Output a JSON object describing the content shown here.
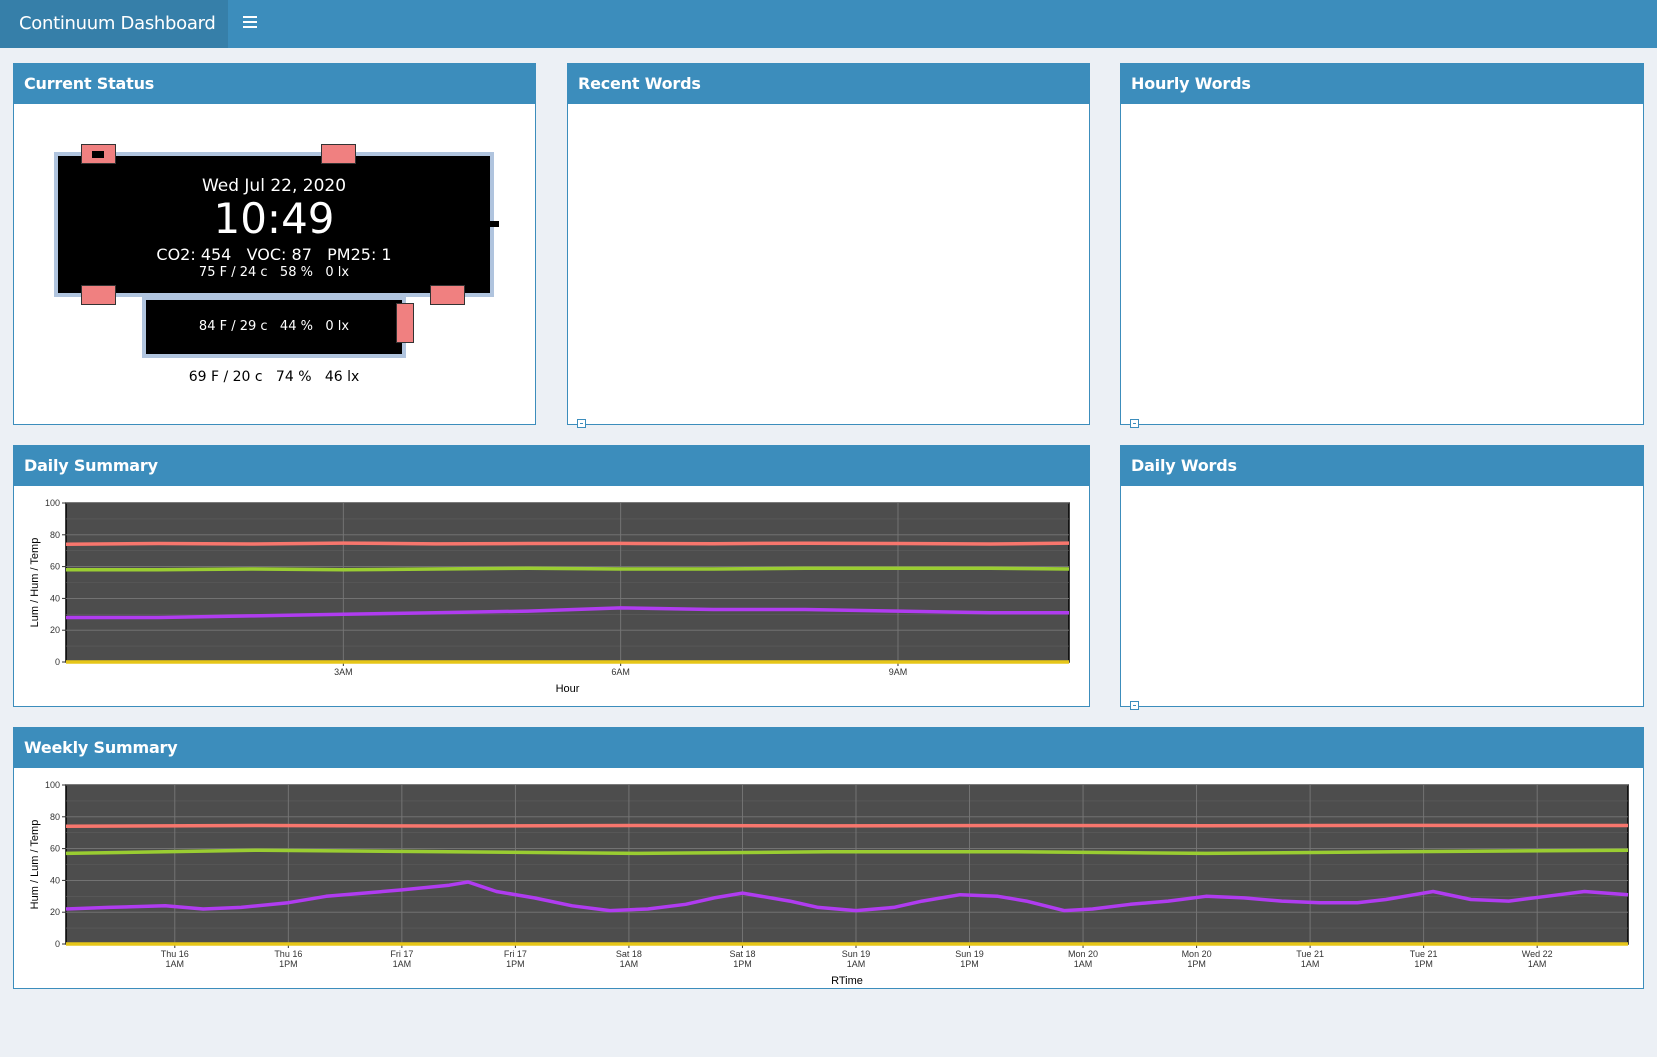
{
  "app": {
    "title": "Continuum Dashboard"
  },
  "boxes": {
    "current_status": "Current Status",
    "recent_words": "Recent Words",
    "hourly_words": "Hourly Words",
    "daily_summary": "Daily Summary",
    "daily_words": "Daily Words",
    "weekly_summary": "Weekly Summary"
  },
  "status": {
    "date": "Wed Jul 22, 2020",
    "time": "10:49",
    "air": "CO2: 454   VOC: 87   PM25: 1",
    "main_env": "75 F / 24 c   58 %   0 lx",
    "sub_env": "84 F / 29 c   44 %   0 lx",
    "outer_env": "69 F / 20 c   74 %   46 lx"
  },
  "colors": {
    "header": "#3c8dbc",
    "brand_bg": "#367fa9",
    "panel_bg": "#4d4d4d",
    "temp": "#f8766d",
    "hum": "#9acd32",
    "lum": "#b03cf0",
    "zero": "#e6c619"
  },
  "chart_data": [
    {
      "type": "line",
      "xlabel": "Hour",
      "ylabel": "Lum / Hum / Temp",
      "ylim": [
        0,
        100
      ],
      "yticks": [
        0,
        20,
        40,
        60,
        80,
        100
      ],
      "xticks": [
        {
          "x": 3,
          "label": "3AM"
        },
        {
          "x": 6,
          "label": "6AM"
        },
        {
          "x": 9,
          "label": "9AM"
        }
      ],
      "xlim": [
        0,
        10.85
      ],
      "grid": true,
      "series": [
        {
          "color": "#f8766d",
          "x": [
            0,
            1,
            2,
            3,
            4,
            5,
            6,
            7,
            8,
            9,
            10,
            10.85
          ],
          "values": [
            74,
            74.5,
            74.2,
            74.8,
            74.3,
            74.5,
            74.6,
            74.4,
            74.7,
            74.5,
            74.2,
            74.8
          ]
        },
        {
          "color": "#9acd32",
          "x": [
            0,
            1,
            2,
            3,
            4,
            5,
            6,
            7,
            8,
            9,
            10,
            10.85
          ],
          "values": [
            58,
            58,
            58.5,
            58,
            58.5,
            59,
            58.5,
            58.5,
            59,
            59,
            59,
            58.5
          ]
        },
        {
          "color": "#b03cf0",
          "x": [
            0,
            1,
            2,
            3,
            4,
            5,
            6,
            7,
            8,
            9,
            10,
            10.85
          ],
          "values": [
            28,
            28,
            29,
            30,
            31,
            32,
            34,
            33,
            33,
            32,
            31,
            31
          ]
        },
        {
          "color": "#e6c619",
          "x": [
            0,
            10.85
          ],
          "values": [
            0,
            0
          ]
        }
      ]
    },
    {
      "type": "line",
      "xlabel": "RTime",
      "ylabel": "Hum / Lum / Temp",
      "ylim": [
        0,
        100
      ],
      "yticks": [
        0,
        20,
        40,
        60,
        80,
        100
      ],
      "xticks": [
        {
          "x": 1,
          "label": [
            "Thu 16",
            "1AM"
          ]
        },
        {
          "x": 13,
          "label": [
            "Thu 16",
            "1PM"
          ]
        },
        {
          "x": 25,
          "label": [
            "Fri 17",
            "1AM"
          ]
        },
        {
          "x": 37,
          "label": [
            "Fri 17",
            "1PM"
          ]
        },
        {
          "x": 49,
          "label": [
            "Sat 18",
            "1AM"
          ]
        },
        {
          "x": 61,
          "label": [
            "Sat 18",
            "1PM"
          ]
        },
        {
          "x": 73,
          "label": [
            "Sun 19",
            "1AM"
          ]
        },
        {
          "x": 85,
          "label": [
            "Sun 19",
            "1PM"
          ]
        },
        {
          "x": 97,
          "label": [
            "Mon 20",
            "1AM"
          ]
        },
        {
          "x": 109,
          "label": [
            "Mon 20",
            "1PM"
          ]
        },
        {
          "x": 121,
          "label": [
            "Tue 21",
            "1AM"
          ]
        },
        {
          "x": 133,
          "label": [
            "Tue 21",
            "1PM"
          ]
        },
        {
          "x": 145,
          "label": [
            "Wed 22",
            "1AM"
          ]
        }
      ],
      "xlim": [
        -10.5,
        154.6
      ],
      "grid": true,
      "series": [
        {
          "color": "#f8766d",
          "x": [
            -10.5,
            10,
            30,
            50,
            70,
            90,
            110,
            130,
            154.6
          ],
          "values": [
            74,
            74.5,
            74.2,
            74.5,
            74.3,
            74.5,
            74.4,
            74.6,
            74.5
          ]
        },
        {
          "color": "#9acd32",
          "x": [
            -10.5,
            10,
            30,
            50,
            70,
            90,
            110,
            130,
            154.6
          ],
          "values": [
            57,
            59,
            58,
            57,
            58,
            58,
            57,
            58,
            59
          ]
        },
        {
          "color": "#b03cf0",
          "x": [
            -10.5,
            -6,
            0,
            4,
            8,
            13,
            17,
            21,
            25,
            30,
            32,
            35,
            39,
            43,
            47,
            51,
            55,
            58,
            61,
            66,
            69,
            73,
            77,
            80,
            84,
            88,
            91,
            95,
            98,
            102,
            106,
            110,
            114,
            118,
            122,
            126,
            129,
            134,
            138,
            142,
            146,
            150,
            154.6
          ],
          "values": [
            22,
            23,
            24,
            22,
            23,
            26,
            30,
            32,
            34,
            37,
            39,
            33,
            29,
            24,
            21,
            22,
            25,
            29,
            32,
            27,
            23,
            21,
            23,
            27,
            31,
            30,
            27,
            21,
            22,
            25,
            27,
            30,
            29,
            27,
            26,
            26,
            28,
            33,
            28,
            27,
            30,
            33,
            31
          ]
        },
        {
          "color": "#e6c619",
          "x": [
            -10.5,
            154.6
          ],
          "values": [
            0,
            0
          ]
        }
      ]
    }
  ]
}
